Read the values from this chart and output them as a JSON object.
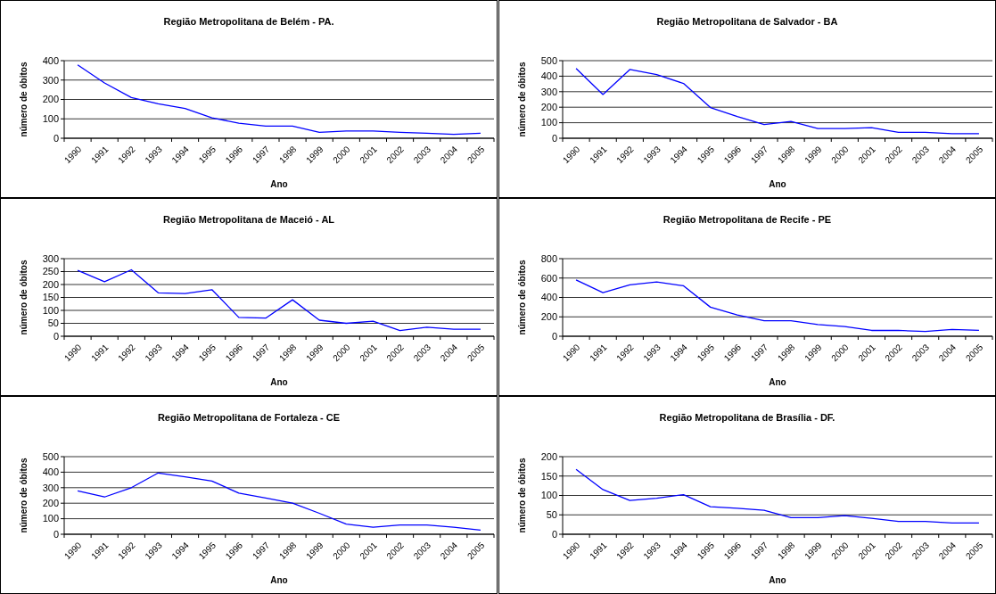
{
  "chart_data": [
    {
      "type": "line",
      "title": "Região Metropolitana de Belém - PA.",
      "xlabel": "Ano",
      "ylabel": "número de óbitos",
      "categories": [
        "1990",
        "1991",
        "1992",
        "1993",
        "1994",
        "1995",
        "1996",
        "1997",
        "1998",
        "1999",
        "2000",
        "2001",
        "2002",
        "2003",
        "2004",
        "2005"
      ],
      "series": [
        {
          "color": "#0000ff",
          "values": [
            378,
            285,
            210,
            178,
            153,
            105,
            78,
            63,
            63,
            30,
            37,
            37,
            30,
            26,
            20,
            26
          ]
        }
      ],
      "ylim": [
        0,
        400
      ],
      "yticks": [
        0,
        100,
        200,
        300,
        400
      ],
      "grid": "y",
      "marker": "none"
    },
    {
      "type": "line",
      "title": "Região Metropolitana de Salvador - BA",
      "xlabel": "Ano",
      "ylabel": "número de óbitos",
      "categories": [
        "1990",
        "1991",
        "1992",
        "1993",
        "1994",
        "1995",
        "1996",
        "1997",
        "1998",
        "1999",
        "2000",
        "2001",
        "2002",
        "2003",
        "2004",
        "2005"
      ],
      "series": [
        {
          "color": "#0000ff",
          "values": [
            450,
            282,
            443,
            410,
            353,
            198,
            140,
            88,
            108,
            63,
            63,
            68,
            38,
            38,
            30,
            30
          ]
        }
      ],
      "ylim": [
        0,
        500
      ],
      "yticks": [
        0,
        100,
        200,
        300,
        400,
        500
      ],
      "grid": "y",
      "marker": "none"
    },
    {
      "type": "line",
      "title": "Região Metropolitana de Maceió - AL",
      "xlabel": "Ano",
      "ylabel": "número de óbitos",
      "categories": [
        "1990",
        "1991",
        "1992",
        "1993",
        "1994",
        "1995",
        "1996",
        "1997",
        "1998",
        "1999",
        "2000",
        "2001",
        "2002",
        "2003",
        "2004",
        "2005"
      ],
      "series": [
        {
          "color": "#0000ff",
          "values": [
            255,
            211,
            257,
            168,
            165,
            180,
            73,
            70,
            141,
            62,
            50,
            58,
            22,
            35,
            27,
            27
          ]
        }
      ],
      "ylim": [
        0,
        300
      ],
      "yticks": [
        0,
        50,
        100,
        150,
        200,
        250,
        300
      ],
      "grid": "y",
      "marker": "none"
    },
    {
      "type": "line",
      "title": "Região Metropolitana de Recife - PE",
      "xlabel": "Ano",
      "ylabel": "número de óbitos",
      "categories": [
        "1990",
        "1991",
        "1992",
        "1993",
        "1994",
        "1995",
        "1996",
        "1997",
        "1998",
        "1999",
        "2000",
        "2001",
        "2002",
        "2003",
        "2004",
        "2005"
      ],
      "series": [
        {
          "color": "#0000ff",
          "values": [
            580,
            450,
            530,
            560,
            520,
            300,
            220,
            160,
            160,
            120,
            100,
            60,
            60,
            50,
            70,
            60
          ]
        }
      ],
      "ylim": [
        0,
        800
      ],
      "yticks": [
        0,
        200,
        400,
        600,
        800
      ],
      "grid": "y",
      "marker": "none"
    },
    {
      "type": "line",
      "title": "Região Metropolitana de Fortaleza - CE",
      "xlabel": "Ano",
      "ylabel": "número de óbitos",
      "categories": [
        "1990",
        "1991",
        "1992",
        "1993",
        "1994",
        "1995",
        "1996",
        "1997",
        "1998",
        "1999",
        "2000",
        "2001",
        "2002",
        "2003",
        "2004",
        "2005"
      ],
      "series": [
        {
          "color": "#0000ff",
          "values": [
            280,
            240,
            300,
            395,
            370,
            343,
            265,
            233,
            200,
            135,
            65,
            45,
            60,
            60,
            45,
            27
          ]
        }
      ],
      "ylim": [
        0,
        500
      ],
      "yticks": [
        0,
        100,
        200,
        300,
        400,
        500
      ],
      "grid": "y",
      "marker": "none"
    },
    {
      "type": "line",
      "title": "Região Metropolitana de Brasília - DF.",
      "xlabel": "Ano",
      "ylabel": "número de óbitos",
      "categories": [
        "1990",
        "1991",
        "1992",
        "1993",
        "1994",
        "1995",
        "1996",
        "1997",
        "1998",
        "1999",
        "2000",
        "2001",
        "2002",
        "2003",
        "2004",
        "2005"
      ],
      "series": [
        {
          "color": "#0000ff",
          "values": [
            167,
            115,
            87,
            93,
            102,
            71,
            67,
            62,
            43,
            43,
            48,
            41,
            33,
            33,
            29,
            29
          ]
        }
      ],
      "ylim": [
        0,
        200
      ],
      "yticks": [
        0,
        50,
        100,
        150,
        200
      ],
      "grid": "y",
      "marker": "none"
    }
  ]
}
